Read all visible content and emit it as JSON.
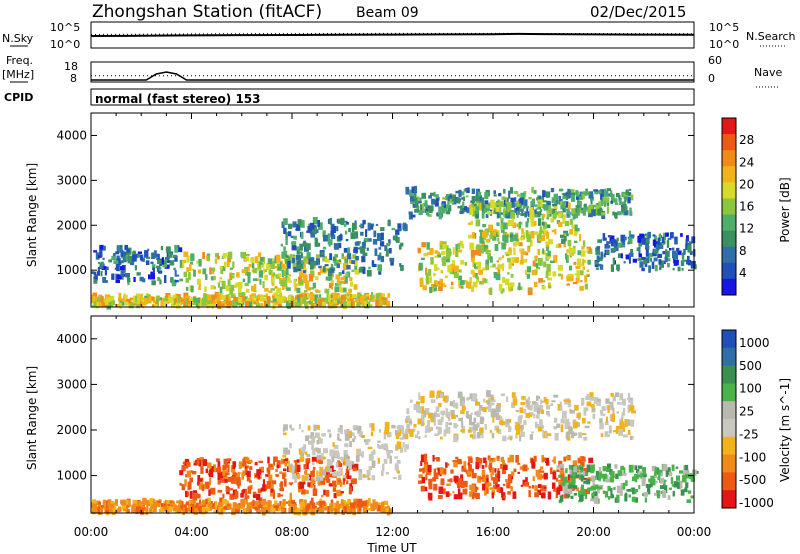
{
  "header": {
    "station": "Zhongshan Station (fitACF)",
    "beam": "Beam 09",
    "date": "02/Dec/2015"
  },
  "labels": {
    "nsky": "N.Sky",
    "nsearch": "N.Search",
    "freq_line1": "Freq.",
    "freq_line2": "[MHz]",
    "nave": "Nave",
    "cpid": "CPID",
    "cpid_value": "normal (fast stereo) 153",
    "nsky_ticks": [
      "10^5",
      "10^0"
    ],
    "nsky_right_ticks": [
      "10^5",
      "10^0"
    ],
    "freq_ticks": [
      "18",
      "8"
    ],
    "nave_ticks": [
      "60",
      "0"
    ]
  },
  "colors": {
    "power": [
      "#1515e8",
      "#1f4fb7",
      "#2f6fa8",
      "#3a9160",
      "#4fae6a",
      "#8cc63f",
      "#d9d92a",
      "#f2b318",
      "#f08a18",
      "#ee5a14",
      "#e51616"
    ],
    "velocity": [
      "#e51616",
      "#ee5a14",
      "#f08a18",
      "#f2b318",
      "#c8c8c0",
      "#b9b9b0",
      "#49b249",
      "#3a8f52",
      "#2f6fa8",
      "#1f4fb7"
    ]
  },
  "chart_data": [
    {
      "type": "line",
      "title": "N.Sky / N.Search",
      "x_range": [
        "00:00",
        "24:00"
      ],
      "y_ticks": [
        "10^0",
        "10^5"
      ],
      "series": [
        {
          "name": "N.Sky",
          "x": [
            0,
            2,
            4,
            6,
            8,
            10,
            12,
            14,
            16,
            17,
            18,
            20,
            22,
            24
          ],
          "values": [
            200,
            220,
            260,
            300,
            320,
            340,
            380,
            420,
            460,
            520,
            480,
            420,
            380,
            350
          ]
        },
        {
          "name": "N.Search",
          "x": [
            0,
            2,
            4,
            6,
            8,
            10,
            12,
            14,
            16,
            18,
            20,
            22,
            24
          ],
          "values": [
            400,
            450,
            520,
            560,
            600,
            620,
            640,
            650,
            640,
            620,
            600,
            580,
            560
          ]
        }
      ]
    },
    {
      "type": "line",
      "title": "Freq. / Nave",
      "x_range": [
        "00:00",
        "24:00"
      ],
      "series": [
        {
          "name": "Freq.",
          "x": [
            0,
            2.2,
            2.6,
            3.0,
            3.4,
            3.8,
            4.2,
            24
          ],
          "values": [
            9,
            9,
            12,
            13,
            12,
            9,
            9,
            9
          ]
        },
        {
          "name": "Nave",
          "x": [
            0,
            24
          ],
          "values": [
            19,
            19
          ]
        }
      ]
    },
    {
      "type": "heatmap",
      "title": "Power",
      "xlabel": "Time UT",
      "ylabel": "Slant Range [km]",
      "xlim": [
        0,
        24
      ],
      "ylim": [
        180,
        4500
      ],
      "xticks": [
        "00:00",
        "04:00",
        "08:00",
        "12:00",
        "16:00",
        "20:00",
        "00:00"
      ],
      "yticks": [
        1000,
        2000,
        3000,
        4000
      ],
      "colorbar": {
        "label": "Power [dB]",
        "min": 0,
        "max": 32,
        "ticks": [
          4,
          8,
          12,
          16,
          20,
          24,
          28
        ]
      },
      "regions": [
        {
          "t0": 0,
          "t1": 11.8,
          "r0": 180,
          "r1": 420,
          "level": 20
        },
        {
          "t0": 0,
          "t1": 3.5,
          "r0": 700,
          "r1": 1500,
          "level": 6
        },
        {
          "t0": 3.5,
          "t1": 10.5,
          "r0": 500,
          "r1": 1350,
          "level": 18
        },
        {
          "t0": 7.5,
          "t1": 12.5,
          "r0": 900,
          "r1": 2100,
          "level": 8
        },
        {
          "t0": 12.5,
          "t1": 21.5,
          "r0": 2200,
          "r1": 2800,
          "level": 10
        },
        {
          "t0": 13.0,
          "t1": 19.8,
          "r0": 500,
          "r1": 1600,
          "level": 19
        },
        {
          "t0": 15.0,
          "t1": 19.5,
          "r0": 1600,
          "r1": 2500,
          "level": 16
        },
        {
          "t0": 20.0,
          "t1": 24.0,
          "r0": 1000,
          "r1": 1800,
          "level": 6
        }
      ]
    },
    {
      "type": "heatmap",
      "title": "Velocity",
      "xlabel": "Time UT",
      "ylabel": "Slant Range [km]",
      "xlim": [
        0,
        24
      ],
      "ylim": [
        180,
        4500
      ],
      "xticks": [
        "00:00",
        "04:00",
        "08:00",
        "12:00",
        "16:00",
        "20:00",
        "00:00"
      ],
      "yticks": [
        1000,
        2000,
        3000,
        4000
      ],
      "colorbar": {
        "label": "Velocity [m s^-1]",
        "ticks": [
          "1000",
          "500",
          "100",
          "25",
          "-25",
          "-100",
          "-500",
          "-1000"
        ]
      },
      "regions": [
        {
          "t0": 0,
          "t1": 11.8,
          "r0": 180,
          "r1": 420,
          "level": "-100"
        },
        {
          "t0": 3.5,
          "t1": 10.5,
          "r0": 500,
          "r1": 1350,
          "level": "-500"
        },
        {
          "t0": 7.5,
          "t1": 12.5,
          "r0": 900,
          "r1": 2100,
          "level": "-25"
        },
        {
          "t0": 12.5,
          "t1": 21.5,
          "r0": 1800,
          "r1": 2800,
          "level": "0"
        },
        {
          "t0": 13.0,
          "t1": 19.8,
          "r0": 500,
          "r1": 1400,
          "level": "-500"
        },
        {
          "t0": 18.5,
          "t1": 24.0,
          "r0": 400,
          "r1": 1200,
          "level": "100"
        }
      ]
    }
  ]
}
